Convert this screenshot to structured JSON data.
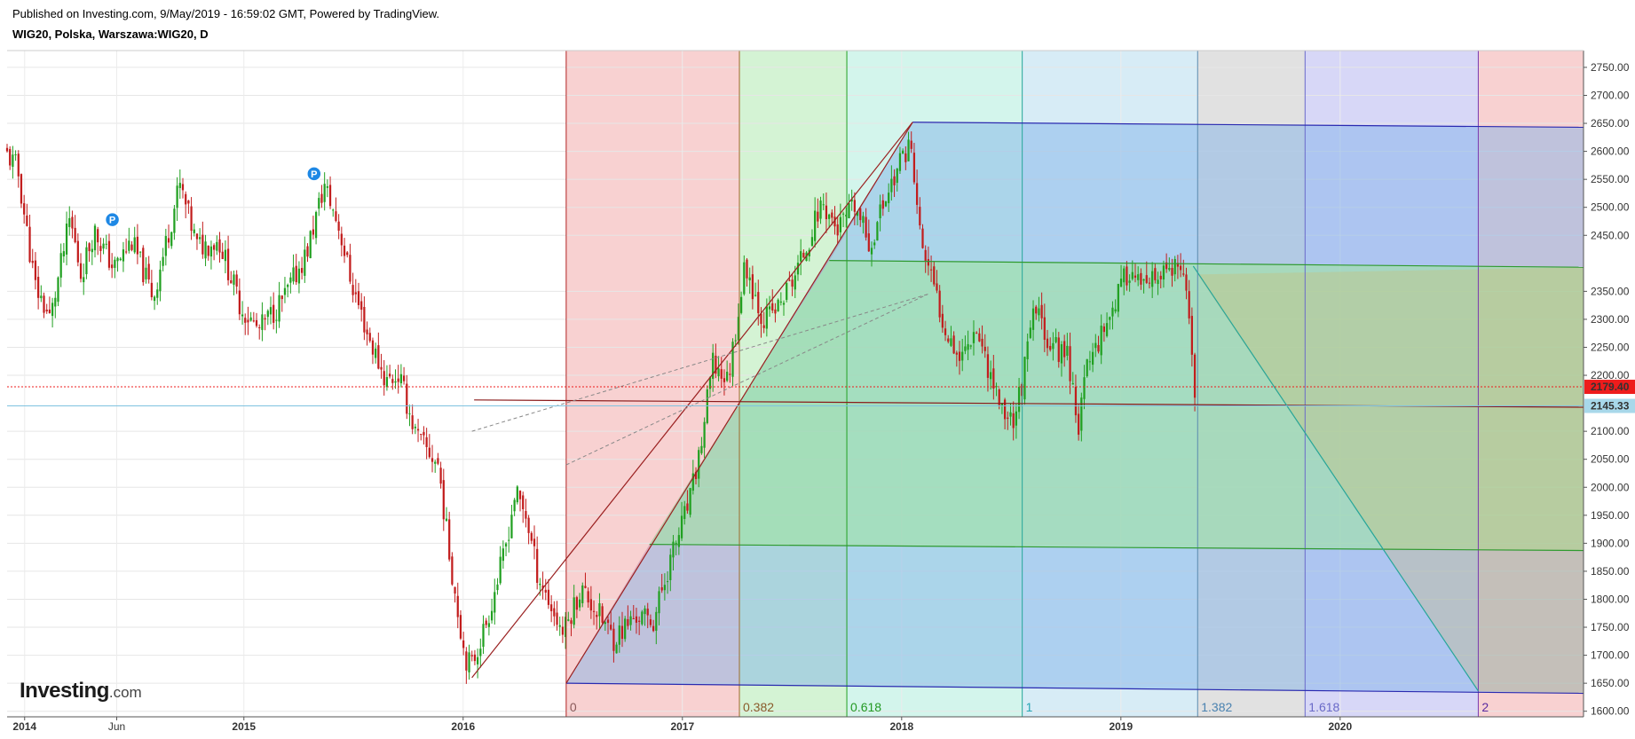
{
  "header": {
    "published": "Published on Investing.com, 9/May/2019 - 16:59:02 GMT, Powered by TradingView.",
    "symbol": "WIG20, Polska, Warszawa:WIG20, D"
  },
  "logo": {
    "brand": "Investing",
    "suffix": ".com"
  },
  "colors": {
    "up": "#21a021",
    "down": "#c21d1d",
    "last_price_bg": "#ee1c1c",
    "ref_price_bg": "#a8d8ea"
  },
  "chart_data": {
    "type": "candlestick",
    "title": "WIG20, Polska, Warszawa:WIG20, D",
    "ylim": [
      1590,
      2780
    ],
    "y_ticks": [
      2750,
      2700,
      2650,
      2600,
      2550,
      2500,
      2450,
      2350,
      2300,
      2250,
      2200,
      2100,
      2050,
      2000,
      1950,
      1900,
      1850,
      1800,
      1750,
      1700,
      1650,
      1600
    ],
    "x_labels": [
      {
        "t": 2014.0,
        "label": "2014",
        "bold": true
      },
      {
        "t": 2014.42,
        "label": "Jun",
        "bold": false
      },
      {
        "t": 2015.0,
        "label": "2015",
        "bold": true
      },
      {
        "t": 2016.0,
        "label": "2016",
        "bold": true
      },
      {
        "t": 2017.0,
        "label": "2017",
        "bold": true
      },
      {
        "t": 2018.0,
        "label": "2018",
        "bold": true
      },
      {
        "t": 2019.0,
        "label": "2019",
        "bold": true
      },
      {
        "t": 2020.0,
        "label": "2020",
        "bold": true
      }
    ],
    "xlim": [
      2013.92,
      2021.11
    ],
    "price_path": [
      [
        2013.92,
        2600
      ],
      [
        2013.98,
        2570
      ],
      [
        2014.06,
        2360
      ],
      [
        2014.13,
        2300
      ],
      [
        2014.22,
        2480
      ],
      [
        2014.27,
        2380
      ],
      [
        2014.33,
        2460
      ],
      [
        2014.42,
        2390
      ],
      [
        2014.5,
        2440
      ],
      [
        2014.6,
        2340
      ],
      [
        2014.72,
        2540
      ],
      [
        2014.8,
        2430
      ],
      [
        2014.9,
        2440
      ],
      [
        2015.0,
        2320
      ],
      [
        2015.08,
        2280
      ],
      [
        2015.2,
        2340
      ],
      [
        2015.3,
        2420
      ],
      [
        2015.38,
        2540
      ],
      [
        2015.45,
        2460
      ],
      [
        2015.5,
        2370
      ],
      [
        2015.58,
        2270
      ],
      [
        2015.66,
        2190
      ],
      [
        2015.72,
        2200
      ],
      [
        2015.8,
        2090
      ],
      [
        2015.9,
        2040
      ],
      [
        2015.95,
        1880
      ],
      [
        2016.02,
        1700
      ],
      [
        2016.05,
        1680
      ],
      [
        2016.12,
        1760
      ],
      [
        2016.2,
        1880
      ],
      [
        2016.25,
        1990
      ],
      [
        2016.3,
        1950
      ],
      [
        2016.35,
        1850
      ],
      [
        2016.42,
        1780
      ],
      [
        2016.47,
        1740
      ],
      [
        2016.55,
        1820
      ],
      [
        2016.62,
        1780
      ],
      [
        2016.7,
        1730
      ],
      [
        2016.8,
        1770
      ],
      [
        2016.88,
        1760
      ],
      [
        2016.95,
        1860
      ],
      [
        2017.05,
        1980
      ],
      [
        2017.1,
        2080
      ],
      [
        2017.15,
        2220
      ],
      [
        2017.22,
        2190
      ],
      [
        2017.3,
        2400
      ],
      [
        2017.38,
        2300
      ],
      [
        2017.45,
        2320
      ],
      [
        2017.55,
        2400
      ],
      [
        2017.65,
        2510
      ],
      [
        2017.72,
        2460
      ],
      [
        2017.8,
        2500
      ],
      [
        2017.87,
        2430
      ],
      [
        2017.93,
        2510
      ],
      [
        2018.05,
        2620
      ],
      [
        2018.1,
        2440
      ],
      [
        2018.2,
        2300
      ],
      [
        2018.28,
        2230
      ],
      [
        2018.35,
        2290
      ],
      [
        2018.42,
        2200
      ],
      [
        2018.47,
        2140
      ],
      [
        2018.52,
        2120
      ],
      [
        2018.56,
        2180
      ],
      [
        2018.62,
        2320
      ],
      [
        2018.7,
        2250
      ],
      [
        2018.77,
        2240
      ],
      [
        2018.82,
        2110
      ],
      [
        2018.86,
        2220
      ],
      [
        2018.95,
        2300
      ],
      [
        2019.05,
        2390
      ],
      [
        2019.12,
        2350
      ],
      [
        2019.2,
        2380
      ],
      [
        2019.28,
        2390
      ],
      [
        2019.32,
        2320
      ],
      [
        2019.35,
        2180
      ]
    ],
    "last_price": "2179.40",
    "ref_price": "2145.33",
    "pivots": [
      {
        "t": 2014.4,
        "price": 2478,
        "label": "P"
      },
      {
        "t": 2015.32,
        "price": 2560,
        "label": "P"
      }
    ],
    "fib_time_zones": [
      {
        "t": 2016.47,
        "label": "0",
        "fill": "#ef9a9a",
        "line": "#b22222",
        "text": "#8a5a5a"
      },
      {
        "t": 2017.26,
        "label": "0.382",
        "fill": "#9fe59f",
        "line": "#a06a2a",
        "text": "#8a5a2a"
      },
      {
        "t": 2017.75,
        "label": "0.618",
        "fill": "#9ee8d4",
        "line": "#22a022",
        "text": "#229922"
      },
      {
        "t": 2018.55,
        "label": "1",
        "fill": "#a6d4ea",
        "line": "#26a69a",
        "text": "#26a6b4"
      },
      {
        "t": 2019.35,
        "label": "1.382",
        "fill": "#bdbdbd",
        "line": "#5a8ab0",
        "text": "#4a82b0"
      },
      {
        "t": 2019.84,
        "label": "1.618",
        "fill": "#a7a7ee",
        "line": "#6a6ac8",
        "text": "#6a6ac8"
      },
      {
        "t": 2020.63,
        "label": "2",
        "fill": "#ef9a9a",
        "line": "#7a3ab0",
        "text": "#5a2aa0"
      }
    ]
  }
}
